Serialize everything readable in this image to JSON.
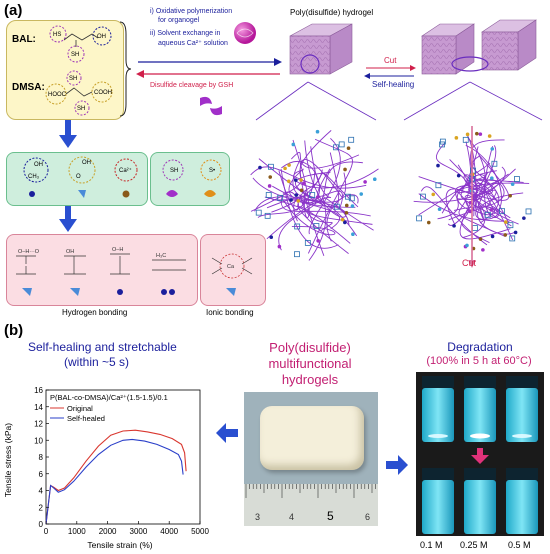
{
  "panel_a": {
    "tag": "(a)",
    "bal_label": "BAL:",
    "dmsa_label": "DMSA:",
    "bal_groups": [
      "HS",
      "SH",
      "OH"
    ],
    "dmsa_groups": [
      "SH",
      "HOOC",
      "COOH",
      "SH"
    ],
    "step1": "i) Oxidative polymerization",
    "step1b": "for organogel",
    "step2": "ii) Solvent exchange in",
    "step2b": "aqueous Ca²⁺ solution",
    "cleavage": "Disulfide cleavage by GSH",
    "hydrogel_title": "Poly(disulfide) hydrogel",
    "cut_label": "Cut",
    "selfheal_label": "Self-healing",
    "cut_bottom": "Cut",
    "green_labels": [
      "OH",
      "CH₃",
      "OH",
      "O",
      "Ca²⁺",
      "SH",
      "S•"
    ],
    "hbond_label": "Hydrogen bonding",
    "ionic_label": "Ionic bonding"
  },
  "panel_b": {
    "tag": "(b)",
    "selfheal_title": "Self-healing and stretchable",
    "selfheal_sub": "(within ~5 s)",
    "center_title_1": "Poly(disulfide)",
    "center_title_2": "multifunctional",
    "center_title_3": "hydrogels",
    "degradation_title": "Degradation",
    "degradation_sub": "(100% in 5 h at 60°C)",
    "vial_labels": [
      "0.1 M",
      "0.25 M",
      "0.5 M"
    ],
    "ruler_numbers": [
      "3",
      "4",
      "5",
      "6"
    ]
  },
  "chart_data": {
    "type": "line",
    "title": "P(BAL-co-DMSA)/Ca²⁺(1.5-1.5)/0.1",
    "xlabel": "Tensile strain (%)",
    "ylabel": "Tensile stress (kPa)",
    "xlim": [
      0,
      5000
    ],
    "ylim": [
      0,
      16
    ],
    "xticks": [
      "0",
      "1000",
      "2000",
      "3000",
      "4000",
      "5000"
    ],
    "yticks": [
      "0",
      "2",
      "4",
      "6",
      "8",
      "10",
      "12",
      "14",
      "16"
    ],
    "legend_placement": "top-left",
    "series": [
      {
        "name": "Original",
        "color": "#d9372f",
        "x": [
          0,
          150,
          250,
          400,
          600,
          900,
          1300,
          1700,
          2100,
          2500,
          2900,
          3300,
          3700,
          4100,
          4400,
          4500,
          4550
        ],
        "y": [
          0,
          4.6,
          4.4,
          4.0,
          4.3,
          5.5,
          7.5,
          9.3,
          10.6,
          11.1,
          11.2,
          11.0,
          10.7,
          10.2,
          9.5,
          8.5,
          6.3
        ]
      },
      {
        "name": "Self-healed",
        "color": "#2a3fc9",
        "x": [
          0,
          150,
          250,
          400,
          600,
          900,
          1300,
          1700,
          2100,
          2500,
          2800,
          3200,
          3600,
          4000,
          4300,
          4400,
          4450
        ],
        "y": [
          0,
          4.6,
          4.3,
          3.8,
          4.1,
          5.1,
          6.8,
          8.3,
          9.4,
          10.0,
          10.1,
          9.9,
          9.5,
          8.9,
          8.3,
          7.5,
          5.9
        ]
      }
    ]
  }
}
